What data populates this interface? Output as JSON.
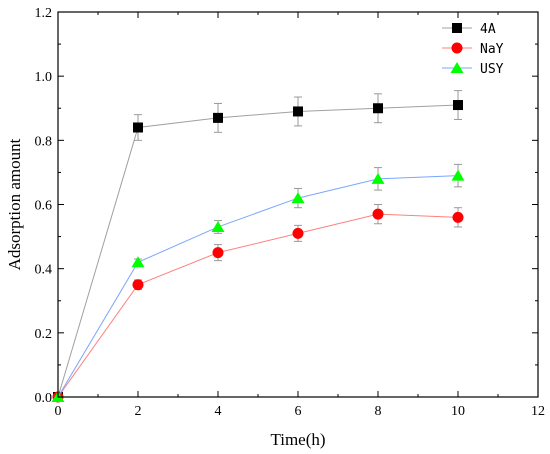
{
  "chart_data": {
    "type": "line",
    "xlabel": "Time(h)",
    "ylabel": "Adsorption amount",
    "xlim": [
      0,
      12
    ],
    "ylim": [
      0,
      1.2
    ],
    "x_ticks": [
      0,
      2,
      4,
      6,
      8,
      10,
      12
    ],
    "y_ticks": [
      0.0,
      0.2,
      0.4,
      0.6,
      0.8,
      1.0,
      1.2
    ],
    "x_tick_labels": [
      "0",
      "2",
      "4",
      "6",
      "8",
      "10",
      "12"
    ],
    "y_tick_labels": [
      "0.0",
      "0.2",
      "0.4",
      "0.6",
      "0.8",
      "1.0",
      "1.2"
    ],
    "grid": false,
    "legend_position": "top-right",
    "series": [
      {
        "name": "4A",
        "marker": "square",
        "marker_color": "#000000",
        "line_color": "#a0a0a0",
        "x": [
          0,
          2,
          4,
          6,
          8,
          10
        ],
        "y": [
          0.0,
          0.84,
          0.87,
          0.89,
          0.9,
          0.91
        ],
        "error": [
          0.0,
          0.04,
          0.045,
          0.045,
          0.045,
          0.045
        ]
      },
      {
        "name": "NaY",
        "marker": "circle",
        "marker_color": "#ff0000",
        "line_color": "#ff8080",
        "x": [
          0,
          2,
          4,
          6,
          8,
          10
        ],
        "y": [
          0.0,
          0.35,
          0.45,
          0.51,
          0.57,
          0.56
        ],
        "error": [
          0.0,
          0.015,
          0.025,
          0.025,
          0.03,
          0.03
        ]
      },
      {
        "name": "USY",
        "marker": "triangle",
        "marker_color": "#00ff00",
        "line_color": "#7aa6ff",
        "x": [
          0,
          2,
          4,
          6,
          8,
          10
        ],
        "y": [
          0.0,
          0.42,
          0.53,
          0.62,
          0.68,
          0.69
        ],
        "error": [
          0.0,
          0.01,
          0.02,
          0.03,
          0.035,
          0.035
        ]
      }
    ]
  }
}
